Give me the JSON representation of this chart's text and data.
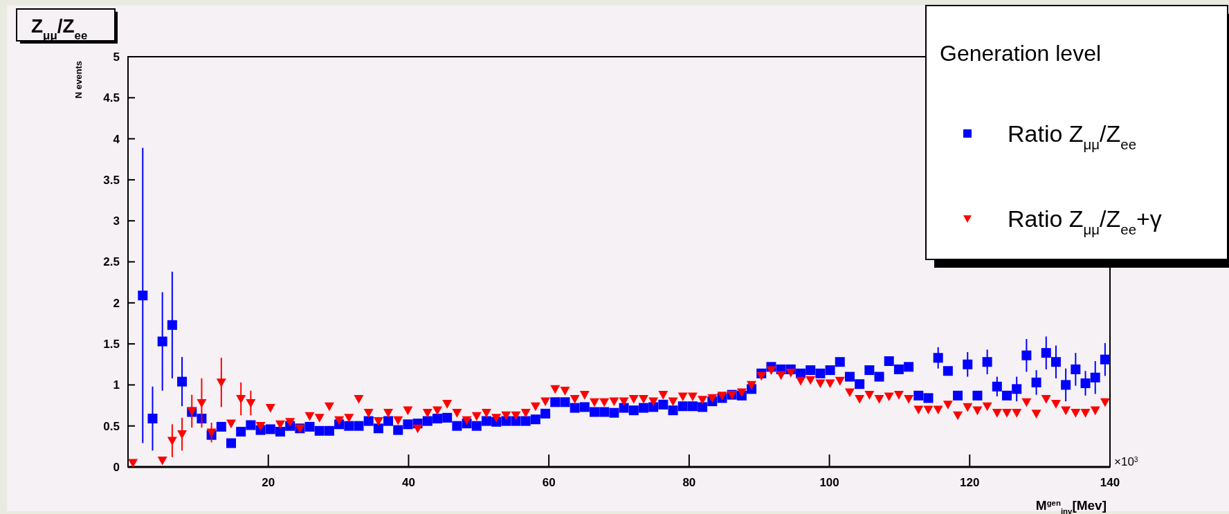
{
  "chart_data": {
    "type": "scatter",
    "title": "Z$_{μμ}$/Z$_{ee}$",
    "ylabel": "N events",
    "xlabel": "M$^{gen}$$_{inv}$[Mev]",
    "legend_title": "Generation level",
    "annotations": [
      "×10$^{3}$"
    ],
    "xlim": [
      0,
      140
    ],
    "xticks": [
      20,
      40,
      60,
      80,
      100,
      120,
      140
    ],
    "ylim": [
      0,
      5
    ],
    "yticks": [
      0,
      0.5,
      1,
      1.5,
      2,
      2.5,
      3,
      3.5,
      4,
      4.5,
      5
    ],
    "legend": "top right",
    "x": [
      0.7,
      2.1,
      3.5,
      4.9,
      6.3,
      7.7,
      9.1,
      10.5,
      11.9,
      13.3,
      14.7,
      16.1,
      17.5,
      18.9,
      20.3,
      21.7,
      23.1,
      24.5,
      25.9,
      27.3,
      28.7,
      30.1,
      31.5,
      32.9,
      34.3,
      35.7,
      37.1,
      38.5,
      39.9,
      41.3,
      42.7,
      44.1,
      45.5,
      46.9,
      48.3,
      49.7,
      51.1,
      52.5,
      53.9,
      55.3,
      56.7,
      58.1,
      59.5,
      60.9,
      62.3,
      63.7,
      65.1,
      66.5,
      67.9,
      69.3,
      70.7,
      72.1,
      73.5,
      74.9,
      76.3,
      77.7,
      79.1,
      80.5,
      81.9,
      83.3,
      84.7,
      86.1,
      87.5,
      88.9,
      90.3,
      91.7,
      93.1,
      94.5,
      95.9,
      97.3,
      98.7,
      100.1,
      101.5,
      102.9,
      104.3,
      105.7,
      107.1,
      108.5,
      109.9,
      111.3,
      112.7,
      114.1,
      115.5,
      116.9,
      118.3,
      119.7,
      121.1,
      122.5,
      123.9,
      125.3,
      126.7,
      128.1,
      129.5,
      130.9,
      132.3,
      133.7,
      135.1,
      136.5,
      137.9,
      139.3
    ],
    "series": [
      {
        "name": "Ratio Z$_{μμ}$/Z$_{ee}$",
        "color": "#0000ff",
        "marker": "square",
        "values": [
          null,
          2.09,
          0.59,
          1.53,
          1.73,
          1.04,
          0.67,
          0.59,
          0.39,
          0.49,
          0.29,
          0.43,
          0.51,
          0.45,
          0.46,
          0.43,
          0.5,
          0.47,
          0.49,
          0.44,
          0.44,
          0.52,
          0.5,
          0.5,
          0.56,
          0.47,
          0.56,
          0.45,
          0.52,
          0.53,
          0.56,
          0.59,
          0.6,
          0.5,
          0.53,
          0.5,
          0.56,
          0.55,
          0.56,
          0.56,
          0.56,
          0.58,
          0.65,
          0.79,
          0.79,
          0.72,
          0.73,
          0.67,
          0.67,
          0.66,
          0.72,
          0.69,
          0.72,
          0.73,
          0.76,
          0.69,
          0.74,
          0.74,
          0.73,
          0.8,
          0.84,
          0.88,
          0.87,
          0.95,
          1.14,
          1.22,
          1.19,
          1.19,
          1.14,
          1.18,
          1.14,
          1.18,
          1.28,
          1.1,
          1.01,
          1.18,
          1.1,
          1.29,
          1.19,
          1.22,
          0.87,
          0.84,
          1.33,
          1.17,
          0.87,
          1.25,
          0.87,
          1.28,
          0.98,
          0.87,
          0.95,
          1.36,
          1.03,
          1.39,
          1.28,
          1.0,
          1.19,
          1.02,
          1.09,
          1.31
        ],
        "errors": [
          null,
          1.8,
          0.39,
          0.6,
          0.65,
          0.3,
          null,
          null,
          null,
          null,
          null,
          null,
          null,
          null,
          null,
          null,
          null,
          null,
          null,
          null,
          null,
          null,
          null,
          null,
          null,
          null,
          null,
          null,
          null,
          null,
          null,
          null,
          null,
          null,
          null,
          null,
          null,
          null,
          null,
          null,
          null,
          null,
          null,
          null,
          null,
          null,
          null,
          null,
          null,
          null,
          null,
          null,
          null,
          null,
          null,
          null,
          null,
          null,
          null,
          null,
          null,
          null,
          null,
          null,
          null,
          null,
          null,
          null,
          null,
          null,
          null,
          null,
          null,
          null,
          null,
          null,
          null,
          null,
          null,
          null,
          null,
          null,
          0.13,
          null,
          null,
          0.15,
          null,
          0.15,
          0.12,
          null,
          0.15,
          0.2,
          0.15,
          0.2,
          0.2,
          0.2,
          0.2,
          0.15,
          0.2,
          0.2
        ]
      },
      {
        "name": "Ratio Z$_{μμ}$/Z$_{ee}$+γ",
        "color": "#ff0000",
        "marker": "triangle",
        "values": [
          0.05,
          null,
          null,
          0.08,
          0.32,
          0.4,
          0.68,
          0.78,
          0.42,
          1.03,
          0.53,
          0.83,
          0.78,
          0.5,
          0.72,
          0.52,
          0.55,
          0.47,
          0.62,
          0.6,
          0.74,
          0.57,
          0.6,
          0.83,
          0.66,
          0.56,
          0.66,
          0.57,
          0.69,
          0.47,
          0.66,
          0.69,
          0.77,
          0.66,
          0.57,
          0.62,
          0.66,
          0.6,
          0.63,
          0.63,
          0.66,
          0.74,
          0.8,
          0.95,
          0.93,
          0.83,
          0.88,
          0.79,
          0.79,
          0.8,
          0.8,
          0.83,
          0.83,
          0.8,
          0.88,
          0.8,
          0.86,
          0.86,
          0.82,
          0.84,
          0.87,
          0.88,
          0.91,
          1.0,
          1.11,
          1.18,
          1.12,
          1.15,
          1.05,
          1.06,
          1.02,
          1.02,
          1.05,
          0.91,
          0.83,
          0.88,
          0.83,
          0.86,
          0.88,
          0.83,
          0.7,
          0.7,
          0.7,
          0.76,
          0.63,
          0.73,
          0.69,
          0.74,
          0.66,
          0.66,
          0.66,
          0.79,
          0.65,
          0.83,
          0.77,
          0.69,
          0.66,
          0.66,
          0.69,
          0.79
        ],
        "errors": [
          null,
          null,
          null,
          null,
          0.2,
          0.2,
          0.2,
          0.3,
          0.12,
          0.3,
          null,
          0.2,
          0.15,
          null,
          null,
          null,
          null,
          null,
          null,
          null,
          null,
          null,
          null,
          null,
          null,
          null,
          null,
          null,
          null,
          null,
          null,
          null,
          null,
          null,
          null,
          null,
          null,
          null,
          null,
          null,
          null,
          null,
          null,
          null,
          null,
          null,
          null,
          null,
          null,
          null,
          null,
          null,
          null,
          null,
          null,
          null,
          null,
          null,
          null,
          null,
          null,
          null,
          null,
          null,
          null,
          null,
          null,
          null,
          null,
          null,
          null,
          null,
          null,
          null,
          null,
          null,
          null,
          null,
          null,
          null,
          null,
          null,
          null,
          null,
          null,
          null,
          null,
          null,
          null,
          null,
          null,
          null,
          null,
          null,
          null,
          null,
          null,
          null,
          null,
          null
        ]
      }
    ]
  }
}
